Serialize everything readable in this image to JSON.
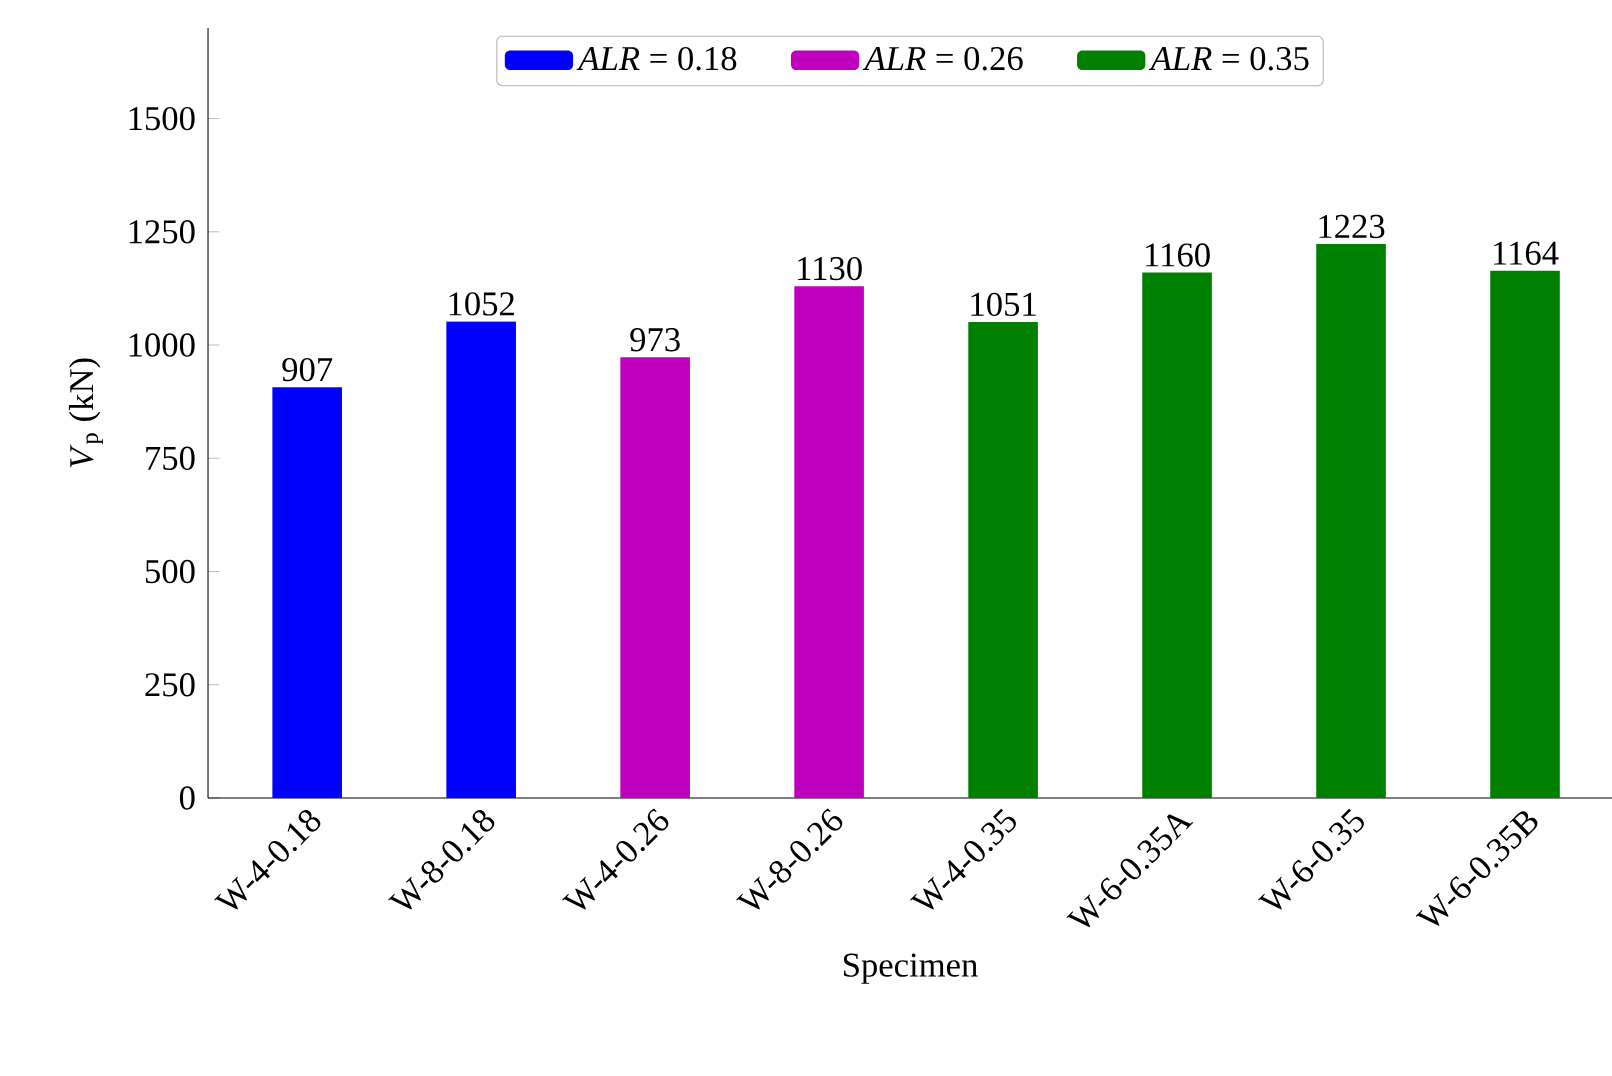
{
  "chart_data": {
    "type": "bar",
    "xlabel": "Specimen",
    "ylabel": "*V*$_{p}$ (kN)",
    "categories": [
      "W-4-0.18",
      "W-8-0.18",
      "W-4-0.26",
      "W-8-0.26",
      "W-4-0.35",
      "W-6-0.35A",
      "W-6-0.35",
      "W-6-0.35B"
    ],
    "series": [
      {
        "name": "*ALR* = 0.18",
        "color": "#0000ff",
        "values": [
          907,
          1052,
          null,
          null,
          null,
          null,
          null,
          null
        ]
      },
      {
        "name": "*ALR* = 0.26",
        "color": "#bf00bf",
        "values": [
          null,
          null,
          973,
          1130,
          null,
          null,
          null,
          null
        ]
      },
      {
        "name": "*ALR* = 0.35",
        "color": "#008000",
        "values": [
          null,
          null,
          null,
          null,
          1051,
          1160,
          1223,
          1164
        ]
      }
    ],
    "ylim": [
      0,
      1700
    ],
    "yticks": [
      0,
      250,
      500,
      750,
      1000,
      1250,
      1500
    ],
    "legend": "top",
    "data_labels": true,
    "grid": false
  }
}
